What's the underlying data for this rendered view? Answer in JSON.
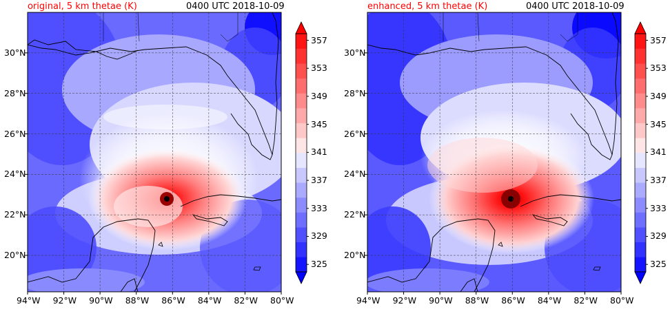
{
  "panels": [
    {
      "id": "left",
      "title_left": "original, 5 km thetae (K)",
      "title_right": "0400 UTC 2018-10-09",
      "storm_center": {
        "lon": -86.3,
        "lat": 22.8
      }
    },
    {
      "id": "right",
      "title_left": "enhanced, 5 km thetae (K)",
      "title_right": "0400 UTC 2018-10-09",
      "storm_center": {
        "lon": -86.0,
        "lat": 22.8
      }
    }
  ],
  "map": {
    "lon_range": [
      -94,
      -80
    ],
    "lat_range": [
      18.2,
      32.0
    ],
    "lon_ticks": [
      "94°W",
      "92°W",
      "90°W",
      "88°W",
      "86°W",
      "84°W",
      "82°W",
      "80°W"
    ],
    "lat_ticks": [
      "20°N",
      "22°N",
      "24°N",
      "26°N",
      "28°N",
      "30°N"
    ],
    "gridlines": "dashed"
  },
  "colorbar": {
    "min": 325,
    "max": 359,
    "step": 2,
    "tick_labels": [
      "325",
      "329",
      "333",
      "337",
      "341",
      "345",
      "349",
      "353",
      "357"
    ],
    "colors": [
      "#1414ff",
      "#3232ff",
      "#5050ff",
      "#6e6eff",
      "#8c8cff",
      "#aaaaff",
      "#c8c8ff",
      "#e6e6ff",
      "#ffe6e6",
      "#ffc8c8",
      "#ffaaaa",
      "#ff8c8c",
      "#ff6e6e",
      "#ff5050",
      "#ff3232",
      "#ff1414"
    ],
    "extend": "both"
  }
}
